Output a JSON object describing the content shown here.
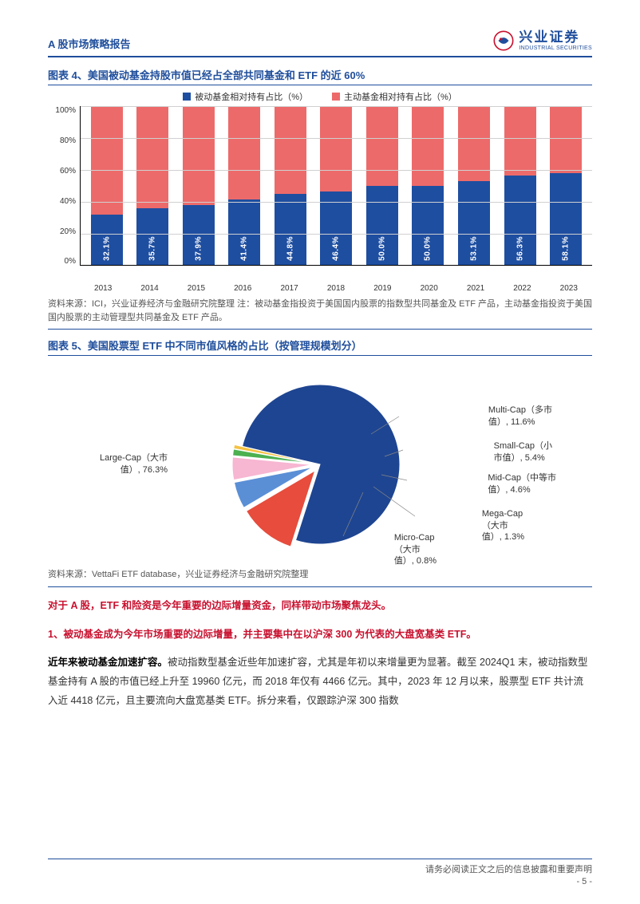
{
  "header": {
    "title": "A 股市场策略报告",
    "logo_zh": "兴业证券",
    "logo_en": "INDUSTRIAL SECURITIES"
  },
  "colors": {
    "brand_blue": "#1f4e9c",
    "brand_red": "#c8102e",
    "bar_passive": "#1e4ea0",
    "bar_active": "#ed6a6a",
    "grid": "#d0d0d0",
    "text": "#333333"
  },
  "chart4": {
    "title": "图表 4、美国被动基金持股市值已经占全部共同基金和 ETF 的近 60%",
    "type": "stacked_bar",
    "legend": [
      {
        "label": "被动基金相对持有占比（%）",
        "color": "#1e4ea0"
      },
      {
        "label": "主动基金相对持有占比（%）",
        "color": "#ed6a6a"
      }
    ],
    "y_ticks": [
      "100%",
      "80%",
      "60%",
      "40%",
      "20%",
      "0%"
    ],
    "ylim": [
      0,
      100
    ],
    "categories": [
      "2013",
      "2014",
      "2015",
      "2016",
      "2017",
      "2018",
      "2019",
      "2020",
      "2021",
      "2022",
      "2023"
    ],
    "passive_values": [
      32.1,
      35.7,
      37.9,
      41.4,
      44.8,
      46.4,
      50.0,
      50.0,
      53.1,
      56.3,
      58.1
    ],
    "bar_label_suffix": "%",
    "source": "资料来源：ICI，兴业证券经济与金融研究院整理  注：被动基金指投资于美国国内股票的指数型共同基金及 ETF 产品，主动基金指投资于美国国内股票的主动管理型共同基金及 ETF 产品。"
  },
  "chart5": {
    "title": "图表 5、美国股票型 ETF 中不同市值风格的占比（按管理规模划分）",
    "type": "pie",
    "slices": [
      {
        "name": "Large-Cap（大市值）",
        "value": 76.3,
        "color": "#1e4591"
      },
      {
        "name": "Micro-Cap（大市值）",
        "value": 0.8,
        "color": "#f5c242"
      },
      {
        "name": "Mega-Cap（大市值）",
        "value": 1.3,
        "color": "#4cb050"
      },
      {
        "name": "Mid-Cap（中等市值）",
        "value": 4.6,
        "color": "#f7b6d2"
      },
      {
        "name": "Small-Cap（小市值）",
        "value": 5.4,
        "color": "#5a8fd6"
      },
      {
        "name": "Multi-Cap（多市值）",
        "value": 11.6,
        "color": "#e74c3c"
      }
    ],
    "label_left": "Large-Cap（大市\n值）, 76.3%",
    "label_multi": "Multi-Cap（多市\n值）, 11.6%",
    "label_small": "Small-Cap（小\n市值）, 5.4%",
    "label_mid": "Mid-Cap（中等市\n值）, 4.6%",
    "label_mega": "Mega-Cap\n（大市\n值）, 1.3%",
    "label_micro": "Micro-Cap\n（大市\n值）, 0.8%",
    "source": "资料来源：VettaFi ETF database，兴业证券经济与金融研究院整理"
  },
  "paragraphs": {
    "p1": "对于 A 股，ETF 和险资是今年重要的边际增量资金，同样带动市场聚焦龙头。",
    "p2": "1、被动基金成为今年市场重要的边际增量，并主要集中在以沪深 300 为代表的大盘宽基类 ETF。",
    "p3_bold": "近年来被动基金加速扩容。",
    "p3_rest": "被动指数型基金近些年加速扩容，尤其是年初以来增量更为显著。截至 2024Q1 末，被动指数型基金持有 A 股的市值已经上升至 19960 亿元，而 2018 年仅有 4466 亿元。其中，2023 年 12 月以来，股票型 ETF 共计流入近 4418 亿元，且主要流向大盘宽基类 ETF。拆分来看，仅跟踪沪深 300 指数"
  },
  "footer": {
    "disclaimer": "请务必阅读正文之后的信息披露和重要声明",
    "page": "- 5 -"
  }
}
